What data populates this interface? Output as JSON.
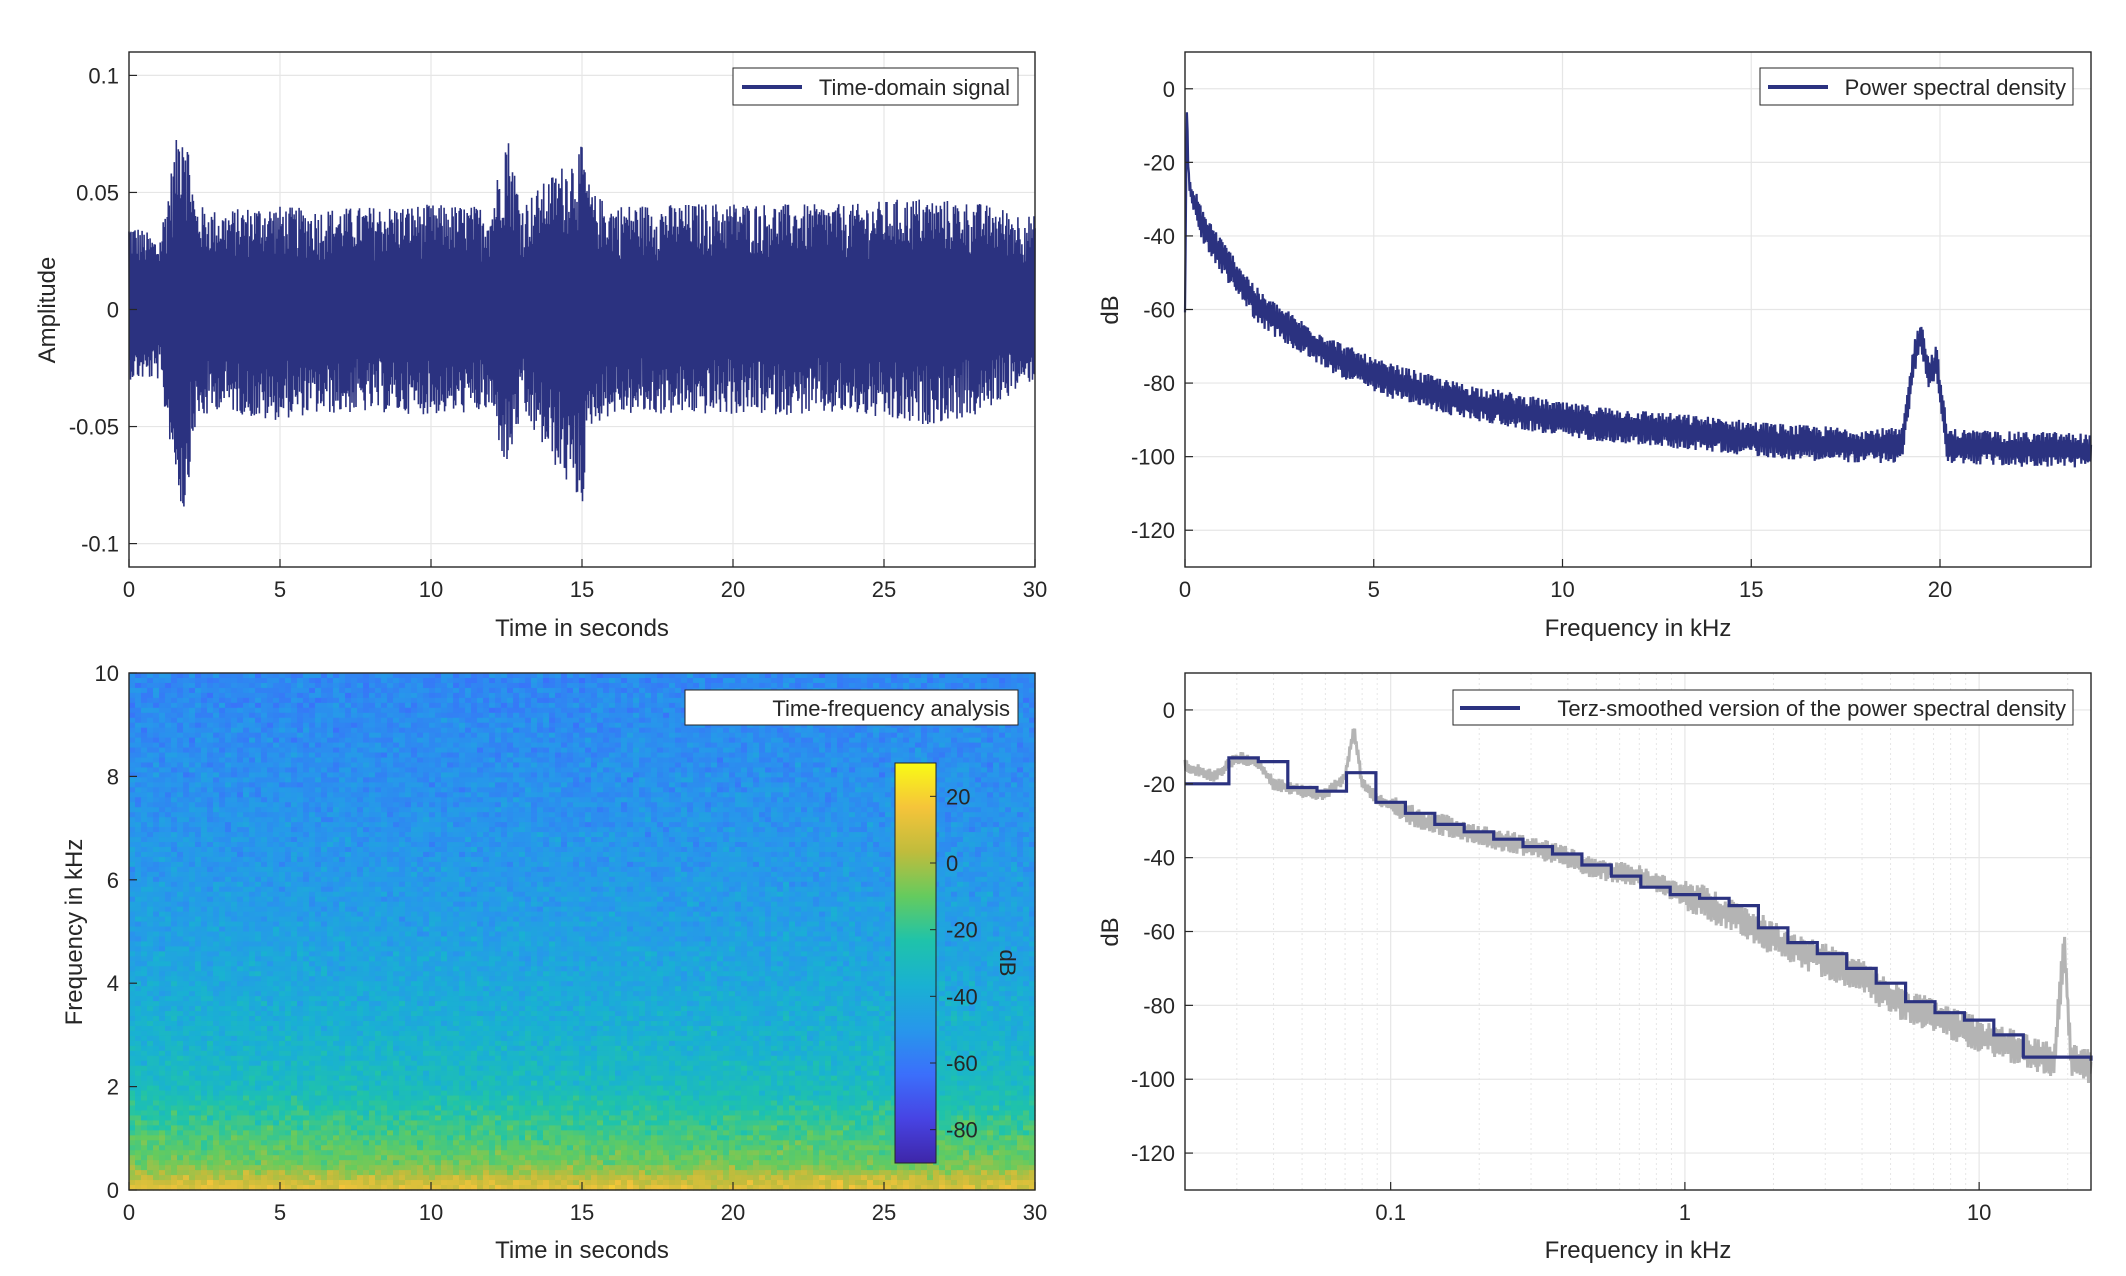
{
  "colors": {
    "series": "#2b3280",
    "raw_psd": "#b4b4b4",
    "grid": "#e6e6e6",
    "axis": "#262626",
    "colormap": [
      "#3e26a8",
      "#4744e4",
      "#3b6ffb",
      "#2797eb",
      "#19b1d2",
      "#1fc3aa",
      "#65cb5e",
      "#c0bc3c",
      "#f5c43a",
      "#f9fb15"
    ]
  },
  "chart_data": [
    {
      "id": "time_signal",
      "type": "line",
      "title": "",
      "xlabel": "Time in seconds",
      "ylabel": "Amplitude",
      "xlim": [
        0,
        30
      ],
      "ylim": [
        -0.11,
        0.11
      ],
      "xticks": [
        0,
        5,
        10,
        15,
        20,
        25,
        30
      ],
      "xtick_labels": [
        "0",
        "5",
        "10",
        "15",
        "20",
        "25",
        "30"
      ],
      "yticks": [
        -0.1,
        -0.05,
        0,
        0.05,
        0.1
      ],
      "ytick_labels": [
        "-0.1",
        "-0.05",
        "0",
        "0.05",
        "0.1"
      ],
      "grid": true,
      "legend": {
        "entries": [
          "Time-domain signal"
        ],
        "placement": "top-right"
      },
      "series": [
        {
          "name": "Time-domain signal",
          "envelope": {
            "x": [
              0,
              1,
              1.8,
              2.2,
              3,
              4.5,
              6,
              8,
              10,
              12,
              12.5,
              13,
              15,
              15.3,
              16,
              18,
              20,
              22,
              24,
              26,
              28,
              30
            ],
            "max": [
              0.038,
              0.03,
              0.09,
              0.045,
              0.042,
              0.045,
              0.043,
              0.044,
              0.045,
              0.044,
              0.078,
              0.045,
              0.07,
              0.05,
              0.045,
              0.045,
              0.046,
              0.045,
              0.045,
              0.048,
              0.046,
              0.04
            ],
            "min": [
              -0.03,
              -0.03,
              -0.09,
              -0.05,
              -0.042,
              -0.048,
              -0.045,
              -0.044,
              -0.045,
              -0.044,
              -0.07,
              -0.045,
              -0.085,
              -0.05,
              -0.045,
              -0.045,
              -0.045,
              -0.045,
              -0.045,
              -0.05,
              -0.046,
              -0.03
            ]
          }
        }
      ]
    },
    {
      "id": "psd",
      "type": "line",
      "title": "",
      "xlabel": "Frequency in kHz",
      "ylabel": "dB",
      "xlim": [
        0,
        24
      ],
      "ylim": [
        -130,
        10
      ],
      "xticks": [
        0,
        5,
        10,
        15,
        20
      ],
      "xtick_labels": [
        "0",
        "5",
        "10",
        "15",
        "20"
      ],
      "yticks": [
        0,
        -20,
        -40,
        -60,
        -80,
        -100,
        -120
      ],
      "ytick_labels": [
        "0",
        "-20",
        "-40",
        "-60",
        "-80",
        "-100",
        "-120"
      ],
      "grid": true,
      "legend": {
        "entries": [
          "Power spectral density"
        ],
        "placement": "top-right"
      },
      "series": [
        {
          "name": "Power spectral density",
          "x": [
            0,
            0.05,
            0.1,
            0.2,
            0.5,
            1,
            1.5,
            2,
            3,
            4,
            5,
            6,
            7,
            8,
            9,
            10,
            11,
            12,
            13,
            14,
            15,
            16,
            17,
            18,
            19,
            19.3,
            19.5,
            19.7,
            19.9,
            20.2,
            21,
            22,
            23,
            24
          ],
          "y": [
            -62,
            -5,
            -25,
            -30,
            -38,
            -46,
            -53,
            -60,
            -67,
            -73,
            -78,
            -81,
            -84,
            -86,
            -88,
            -90,
            -91,
            -92,
            -93,
            -94,
            -95,
            -96,
            -96.5,
            -97,
            -97,
            -74,
            -66,
            -78,
            -74,
            -97,
            -97.5,
            -98,
            -98,
            -98.5
          ]
        }
      ]
    },
    {
      "id": "spectrogram",
      "type": "heatmap",
      "title": "",
      "xlabel": "Time in seconds",
      "ylabel": "Frequency in kHz",
      "xlim": [
        0,
        30
      ],
      "ylim": [
        0,
        10
      ],
      "xticks": [
        0,
        5,
        10,
        15,
        20,
        25,
        30
      ],
      "xtick_labels": [
        "0",
        "5",
        "10",
        "15",
        "20",
        "25",
        "30"
      ],
      "yticks": [
        0,
        2,
        4,
        6,
        8,
        10
      ],
      "ytick_labels": [
        "0",
        "2",
        "4",
        "6",
        "8",
        "10"
      ],
      "legend": {
        "entries": [
          "Time-frequency analysis"
        ],
        "placement": "top-right"
      },
      "colorbar": {
        "label": "dB",
        "range": [
          -90,
          30
        ],
        "ticks": [
          20,
          0,
          -20,
          -40,
          -60,
          -80
        ],
        "tick_labels": [
          "20",
          "0",
          "-20",
          "-40",
          "-60",
          "-80"
        ]
      },
      "profile": {
        "freq_khz": [
          0,
          0.2,
          0.5,
          1,
          1.5,
          2,
          3,
          4,
          5,
          6,
          8,
          10
        ],
        "db": [
          12,
          5,
          -8,
          -15,
          -22,
          -30,
          -36,
          -41,
          -45,
          -48,
          -52,
          -55
        ]
      }
    },
    {
      "id": "terz_psd",
      "type": "line",
      "title": "",
      "xlabel": "Frequency in kHz",
      "ylabel": "dB",
      "xscale": "log",
      "xlim": [
        0.02,
        24
      ],
      "ylim": [
        -130,
        10
      ],
      "xticks": [
        0.1,
        1,
        10
      ],
      "xtick_labels": [
        "0.1",
        "1",
        "10"
      ],
      "yticks": [
        0,
        -20,
        -40,
        -60,
        -80,
        -100,
        -120
      ],
      "ytick_labels": [
        "0",
        "-20",
        "-40",
        "-60",
        "-80",
        "-100",
        "-120"
      ],
      "grid": true,
      "legend": {
        "entries": [
          "Terz-smoothed version of the power spectral density"
        ],
        "placement": "top-right"
      },
      "series": [
        {
          "name": "",
          "x": [
            0.02,
            0.025,
            0.03,
            0.035,
            0.04,
            0.05,
            0.06,
            0.07,
            0.075,
            0.08,
            0.09,
            0.1,
            0.13,
            0.17,
            0.2,
            0.3,
            0.4,
            0.5,
            0.7,
            1,
            1.5,
            2,
            3,
            4,
            5,
            7,
            10,
            15,
            18,
            19.5,
            20.5,
            24
          ],
          "y": [
            -15,
            -18,
            -13,
            -14,
            -20,
            -22,
            -23,
            -18,
            -5,
            -20,
            -24,
            -26,
            -30,
            -32,
            -34,
            -37,
            -40,
            -43,
            -45,
            -50,
            -56,
            -62,
            -68,
            -72,
            -78,
            -83,
            -88,
            -93,
            -95,
            -63,
            -95,
            -97
          ]
        },
        {
          "name": "Terz-smoothed version of the power spectral density",
          "edges": [
            0.02,
            0.0224,
            0.0282,
            0.0355,
            0.0447,
            0.0562,
            0.0708,
            0.0891,
            0.1122,
            0.1413,
            0.1778,
            0.2239,
            0.2818,
            0.3548,
            0.4467,
            0.5623,
            0.7079,
            0.8913,
            1.122,
            1.413,
            1.778,
            2.239,
            2.818,
            3.548,
            4.467,
            5.623,
            7.079,
            8.913,
            11.22,
            14.13,
            24
          ],
          "levels": [
            -20,
            -20,
            -13,
            -14,
            -21,
            -22,
            -17,
            -25,
            -28,
            -31,
            -33,
            -35,
            -37,
            -39,
            -42,
            -45,
            -48,
            -50,
            -51,
            -53,
            -59,
            -63,
            -66,
            -70,
            -74,
            -79,
            -82,
            -84,
            -88,
            -94,
            -95
          ]
        }
      ]
    }
  ]
}
